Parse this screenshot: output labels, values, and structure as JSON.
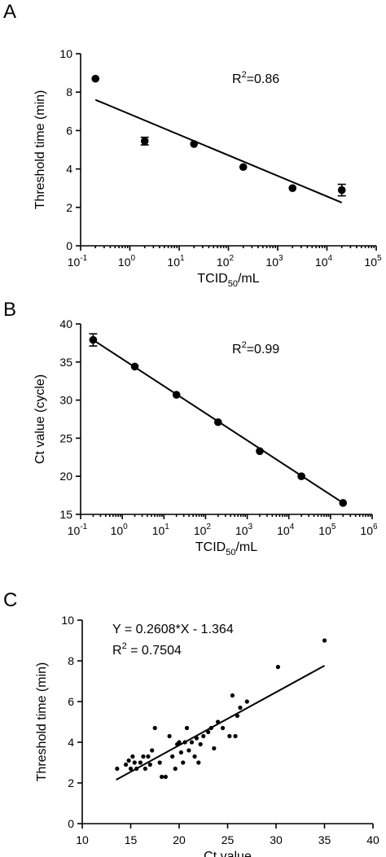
{
  "chart_data": [
    {
      "panel": "A",
      "type": "scatter",
      "xlabel": {
        "main": "TCID",
        "sub": "50",
        "rest": "/mL"
      },
      "ylabel": "Threshold time (min)",
      "xscale": "log",
      "xlim": [
        -1,
        5
      ],
      "ylim": [
        0,
        10
      ],
      "xticks": [
        {
          "base": "10",
          "exp": "-1",
          "v": -1
        },
        {
          "base": "10",
          "exp": "0",
          "v": 0
        },
        {
          "base": "10",
          "exp": "1",
          "v": 1
        },
        {
          "base": "10",
          "exp": "2",
          "v": 2
        },
        {
          "base": "10",
          "exp": "3",
          "v": 3
        },
        {
          "base": "10",
          "exp": "4",
          "v": 4
        },
        {
          "base": "10",
          "exp": "5",
          "v": 5
        }
      ],
      "yticks": [
        0,
        2,
        4,
        6,
        8,
        10
      ],
      "points": [
        {
          "x": 0.2,
          "y": 8.7,
          "err": 0
        },
        {
          "x": 2,
          "y": 5.45,
          "err": 0.2
        },
        {
          "x": 20,
          "y": 5.3,
          "err": 0
        },
        {
          "x": 200,
          "y": 4.1,
          "err": 0
        },
        {
          "x": 2000,
          "y": 3.0,
          "err": 0
        },
        {
          "x": 20000,
          "y": 2.9,
          "err": 0.3
        }
      ],
      "fit": {
        "x": [
          0.2,
          20000
        ],
        "y": [
          7.6,
          2.25
        ]
      },
      "annotation": {
        "base": "R",
        "sup": "2",
        "rest": "=0.86"
      }
    },
    {
      "panel": "B",
      "type": "scatter",
      "xlabel": {
        "main": "TCID",
        "sub": "50",
        "rest": "/mL"
      },
      "ylabel": "Ct value (cycle)",
      "xscale": "log",
      "xlim": [
        -1,
        6
      ],
      "ylim": [
        15,
        40
      ],
      "xticks": [
        {
          "base": "10",
          "exp": "-1",
          "v": -1
        },
        {
          "base": "10",
          "exp": "0",
          "v": 0
        },
        {
          "base": "10",
          "exp": "1",
          "v": 1
        },
        {
          "base": "10",
          "exp": "2",
          "v": 2
        },
        {
          "base": "10",
          "exp": "3",
          "v": 3
        },
        {
          "base": "10",
          "exp": "4",
          "v": 4
        },
        {
          "base": "10",
          "exp": "5",
          "v": 5
        },
        {
          "base": "10",
          "exp": "6",
          "v": 6
        }
      ],
      "yticks": [
        15,
        20,
        25,
        30,
        35,
        40
      ],
      "points": [
        {
          "x": 0.2,
          "y": 37.9,
          "err": 0.8
        },
        {
          "x": 2,
          "y": 34.4,
          "err": 0
        },
        {
          "x": 20,
          "y": 30.7,
          "err": 0
        },
        {
          "x": 200,
          "y": 27.1,
          "err": 0
        },
        {
          "x": 2000,
          "y": 23.3,
          "err": 0
        },
        {
          "x": 20000,
          "y": 20.0,
          "err": 0
        },
        {
          "x": 200000,
          "y": 16.5,
          "err": 0
        }
      ],
      "fit": {
        "x": [
          0.2,
          200000
        ],
        "y": [
          37.9,
          16.5
        ]
      },
      "annotation": {
        "base": "R",
        "sup": "2",
        "rest": "=0.99"
      }
    },
    {
      "panel": "C",
      "type": "scatter",
      "xlabel": "Ct value",
      "ylabel": "Threshold time (min)",
      "xlim": [
        10,
        40
      ],
      "ylim": [
        0,
        10
      ],
      "xticks": [
        10,
        15,
        20,
        25,
        30,
        35,
        40
      ],
      "yticks": [
        0,
        2,
        4,
        6,
        8,
        10
      ],
      "points": [
        [
          13.6,
          2.7
        ],
        [
          14.5,
          2.9
        ],
        [
          14.8,
          3.1
        ],
        [
          15.0,
          2.7
        ],
        [
          15.2,
          3.3
        ],
        [
          15.4,
          3.0
        ],
        [
          15.6,
          2.7
        ],
        [
          16.0,
          3.0
        ],
        [
          16.3,
          3.3
        ],
        [
          16.5,
          2.7
        ],
        [
          16.8,
          3.3
        ],
        [
          17.0,
          2.9
        ],
        [
          17.2,
          3.6
        ],
        [
          17.5,
          4.7
        ],
        [
          18.0,
          3.0
        ],
        [
          18.2,
          2.3
        ],
        [
          18.6,
          2.3
        ],
        [
          19.0,
          4.3
        ],
        [
          19.3,
          3.3
        ],
        [
          19.6,
          2.7
        ],
        [
          19.8,
          3.9
        ],
        [
          20.0,
          4.0
        ],
        [
          20.2,
          3.5
        ],
        [
          20.4,
          3.0
        ],
        [
          20.6,
          4.0
        ],
        [
          20.8,
          4.7
        ],
        [
          21.0,
          3.6
        ],
        [
          21.3,
          4.0
        ],
        [
          21.6,
          3.3
        ],
        [
          21.8,
          4.2
        ],
        [
          22.0,
          3.0
        ],
        [
          22.2,
          3.9
        ],
        [
          22.5,
          4.3
        ],
        [
          23.0,
          4.5
        ],
        [
          23.3,
          4.7
        ],
        [
          23.6,
          3.7
        ],
        [
          24.0,
          5.0
        ],
        [
          24.5,
          4.7
        ],
        [
          25.2,
          4.3
        ],
        [
          25.5,
          6.3
        ],
        [
          25.8,
          4.3
        ],
        [
          26.0,
          5.3
        ],
        [
          26.3,
          5.7
        ],
        [
          27.0,
          6.0
        ],
        [
          30.2,
          7.7
        ],
        [
          35.0,
          9.0
        ]
      ],
      "fit": {
        "x": [
          13.5,
          35
        ],
        "y": [
          2.157,
          7.764
        ]
      },
      "annotation_lines": [
        "Y = 0.2608*X - 1.364"
      ],
      "annotation_r2": {
        "base": "R",
        "sup": "2",
        "rest": " = 0.7504"
      }
    }
  ]
}
